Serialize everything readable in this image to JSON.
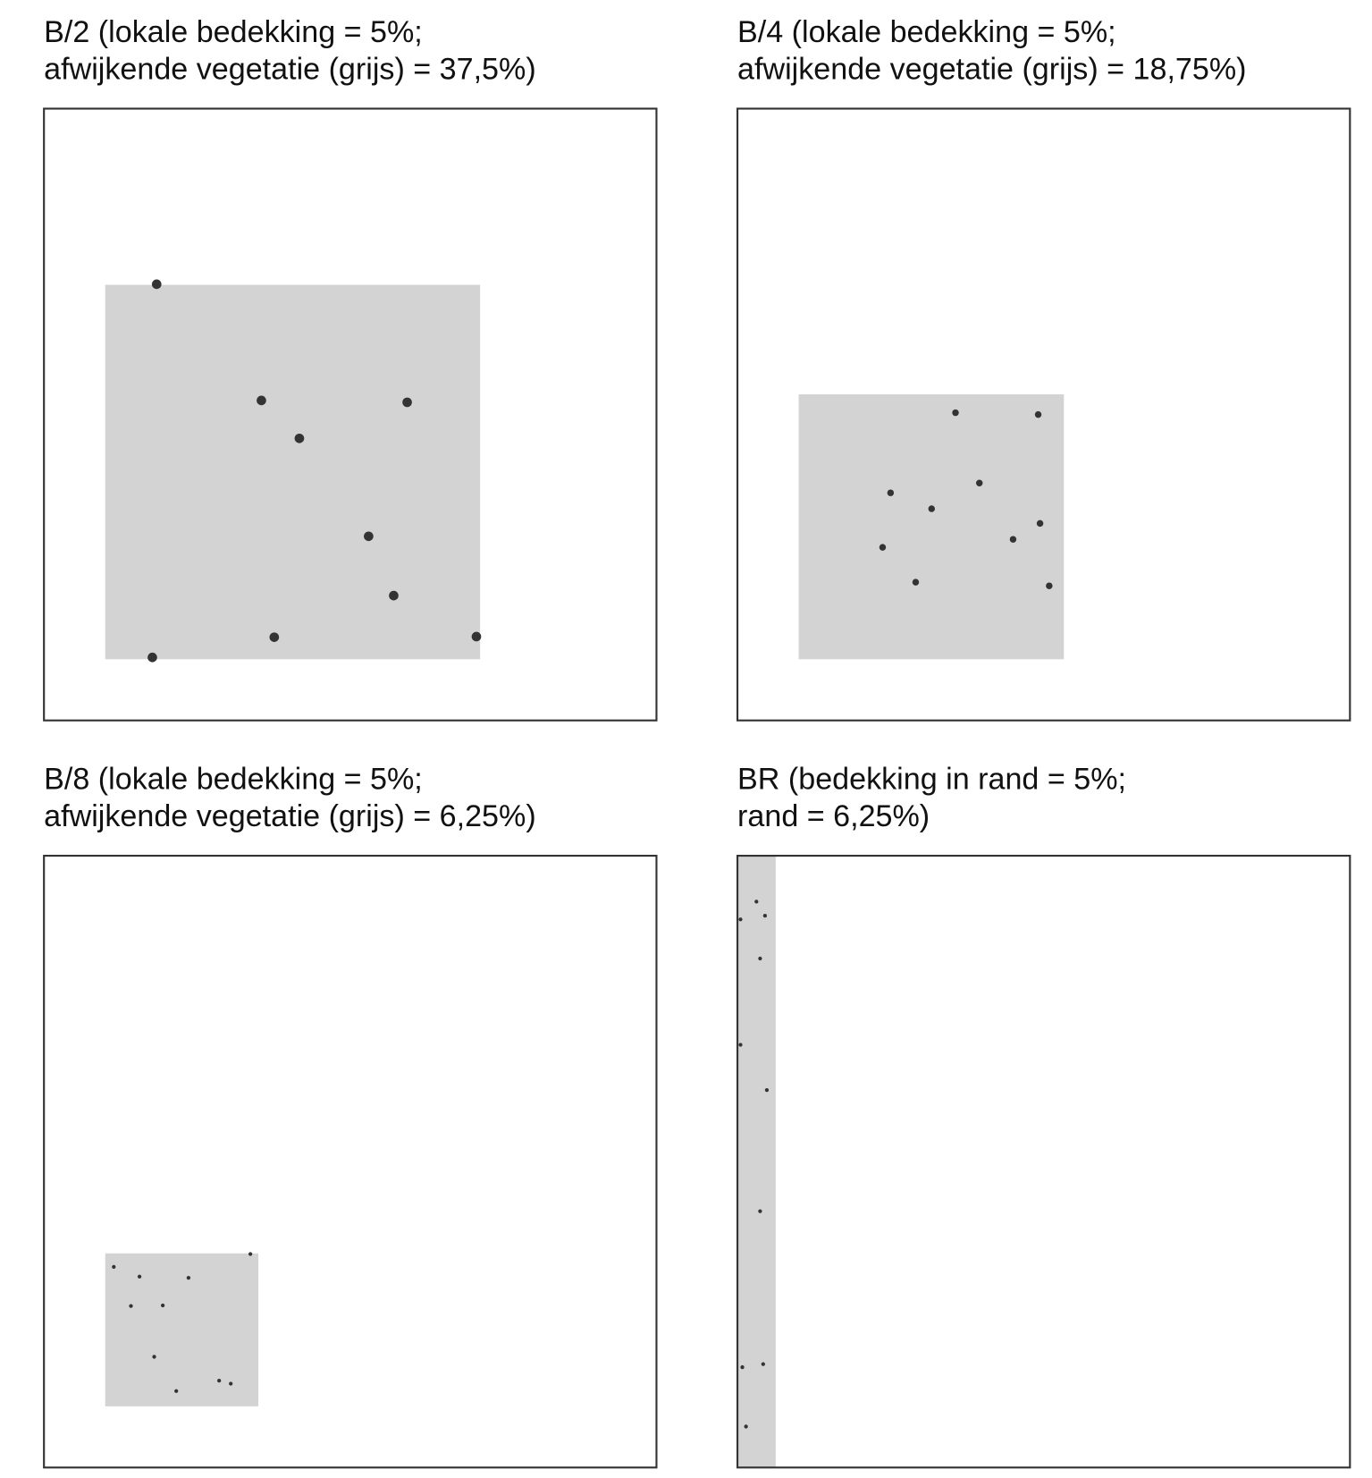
{
  "chart_data": [
    {
      "type": "scatter",
      "title": [
        "B/2 (lokale bedekking = 5%;",
        "afwijkende vegetatie (grijs) = 37,5%)"
      ],
      "xlim": [
        0,
        1
      ],
      "ylim": [
        0,
        1
      ],
      "region": {
        "x": [
          0.1,
          0.712
        ],
        "y": [
          0.1,
          0.712
        ]
      },
      "region_color": "#d3d3d3",
      "color": "#333333",
      "marker_size": 5,
      "x": [
        0.184,
        0.355,
        0.593,
        0.417,
        0.53,
        0.571,
        0.376,
        0.706,
        0.177
      ],
      "y": [
        0.713,
        0.523,
        0.52,
        0.461,
        0.301,
        0.204,
        0.136,
        0.137,
        0.103
      ]
    },
    {
      "type": "scatter",
      "title": [
        "B/4 (lokale bedekking = 5%;",
        "afwijkende vegetatie (grijs) = 18,75%)"
      ],
      "xlim": [
        0,
        1
      ],
      "ylim": [
        0,
        1
      ],
      "region": {
        "x": [
          0.1,
          0.533
        ],
        "y": [
          0.1,
          0.533
        ]
      },
      "region_color": "#d3d3d3",
      "color": "#333333",
      "marker_size": 3.5,
      "x": [
        0.356,
        0.491,
        0.395,
        0.25,
        0.317,
        0.494,
        0.45,
        0.237,
        0.291,
        0.509
      ],
      "y": [
        0.503,
        0.5,
        0.388,
        0.372,
        0.346,
        0.322,
        0.296,
        0.283,
        0.226,
        0.22
      ]
    },
    {
      "type": "scatter",
      "title": [
        "B/8 (lokale bedekking = 5%;",
        "afwijkende vegetatie (grijs) = 6,25%)"
      ],
      "xlim": [
        0,
        1
      ],
      "ylim": [
        0,
        1
      ],
      "region": {
        "x": [
          0.1,
          0.35
        ],
        "y": [
          0.1,
          0.35
        ]
      },
      "region_color": "#d3d3d3",
      "color": "#333333",
      "marker_size": 2,
      "x": [
        0.114,
        0.156,
        0.236,
        0.337,
        0.142,
        0.194,
        0.18,
        0.286,
        0.305,
        0.216
      ],
      "y": [
        0.328,
        0.312,
        0.31,
        0.349,
        0.264,
        0.265,
        0.181,
        0.142,
        0.137,
        0.125
      ]
    },
    {
      "type": "scatter",
      "title": [
        "BR (bedekking in rand = 5%;",
        "rand = 6,25%)"
      ],
      "xlim": [
        0,
        1
      ],
      "ylim": [
        0,
        1
      ],
      "region": {
        "x": [
          0,
          0.0625
        ],
        "y": [
          0,
          1
        ]
      },
      "region_color": "#d3d3d3",
      "color": "#333333",
      "marker_size": 2,
      "x": [
        0.031,
        0.005,
        0.045,
        0.037,
        0.005,
        0.048,
        0.037,
        0.042,
        0.008,
        0.014
      ],
      "y": [
        0.925,
        0.896,
        0.902,
        0.832,
        0.691,
        0.617,
        0.419,
        0.169,
        0.164,
        0.067
      ]
    }
  ]
}
